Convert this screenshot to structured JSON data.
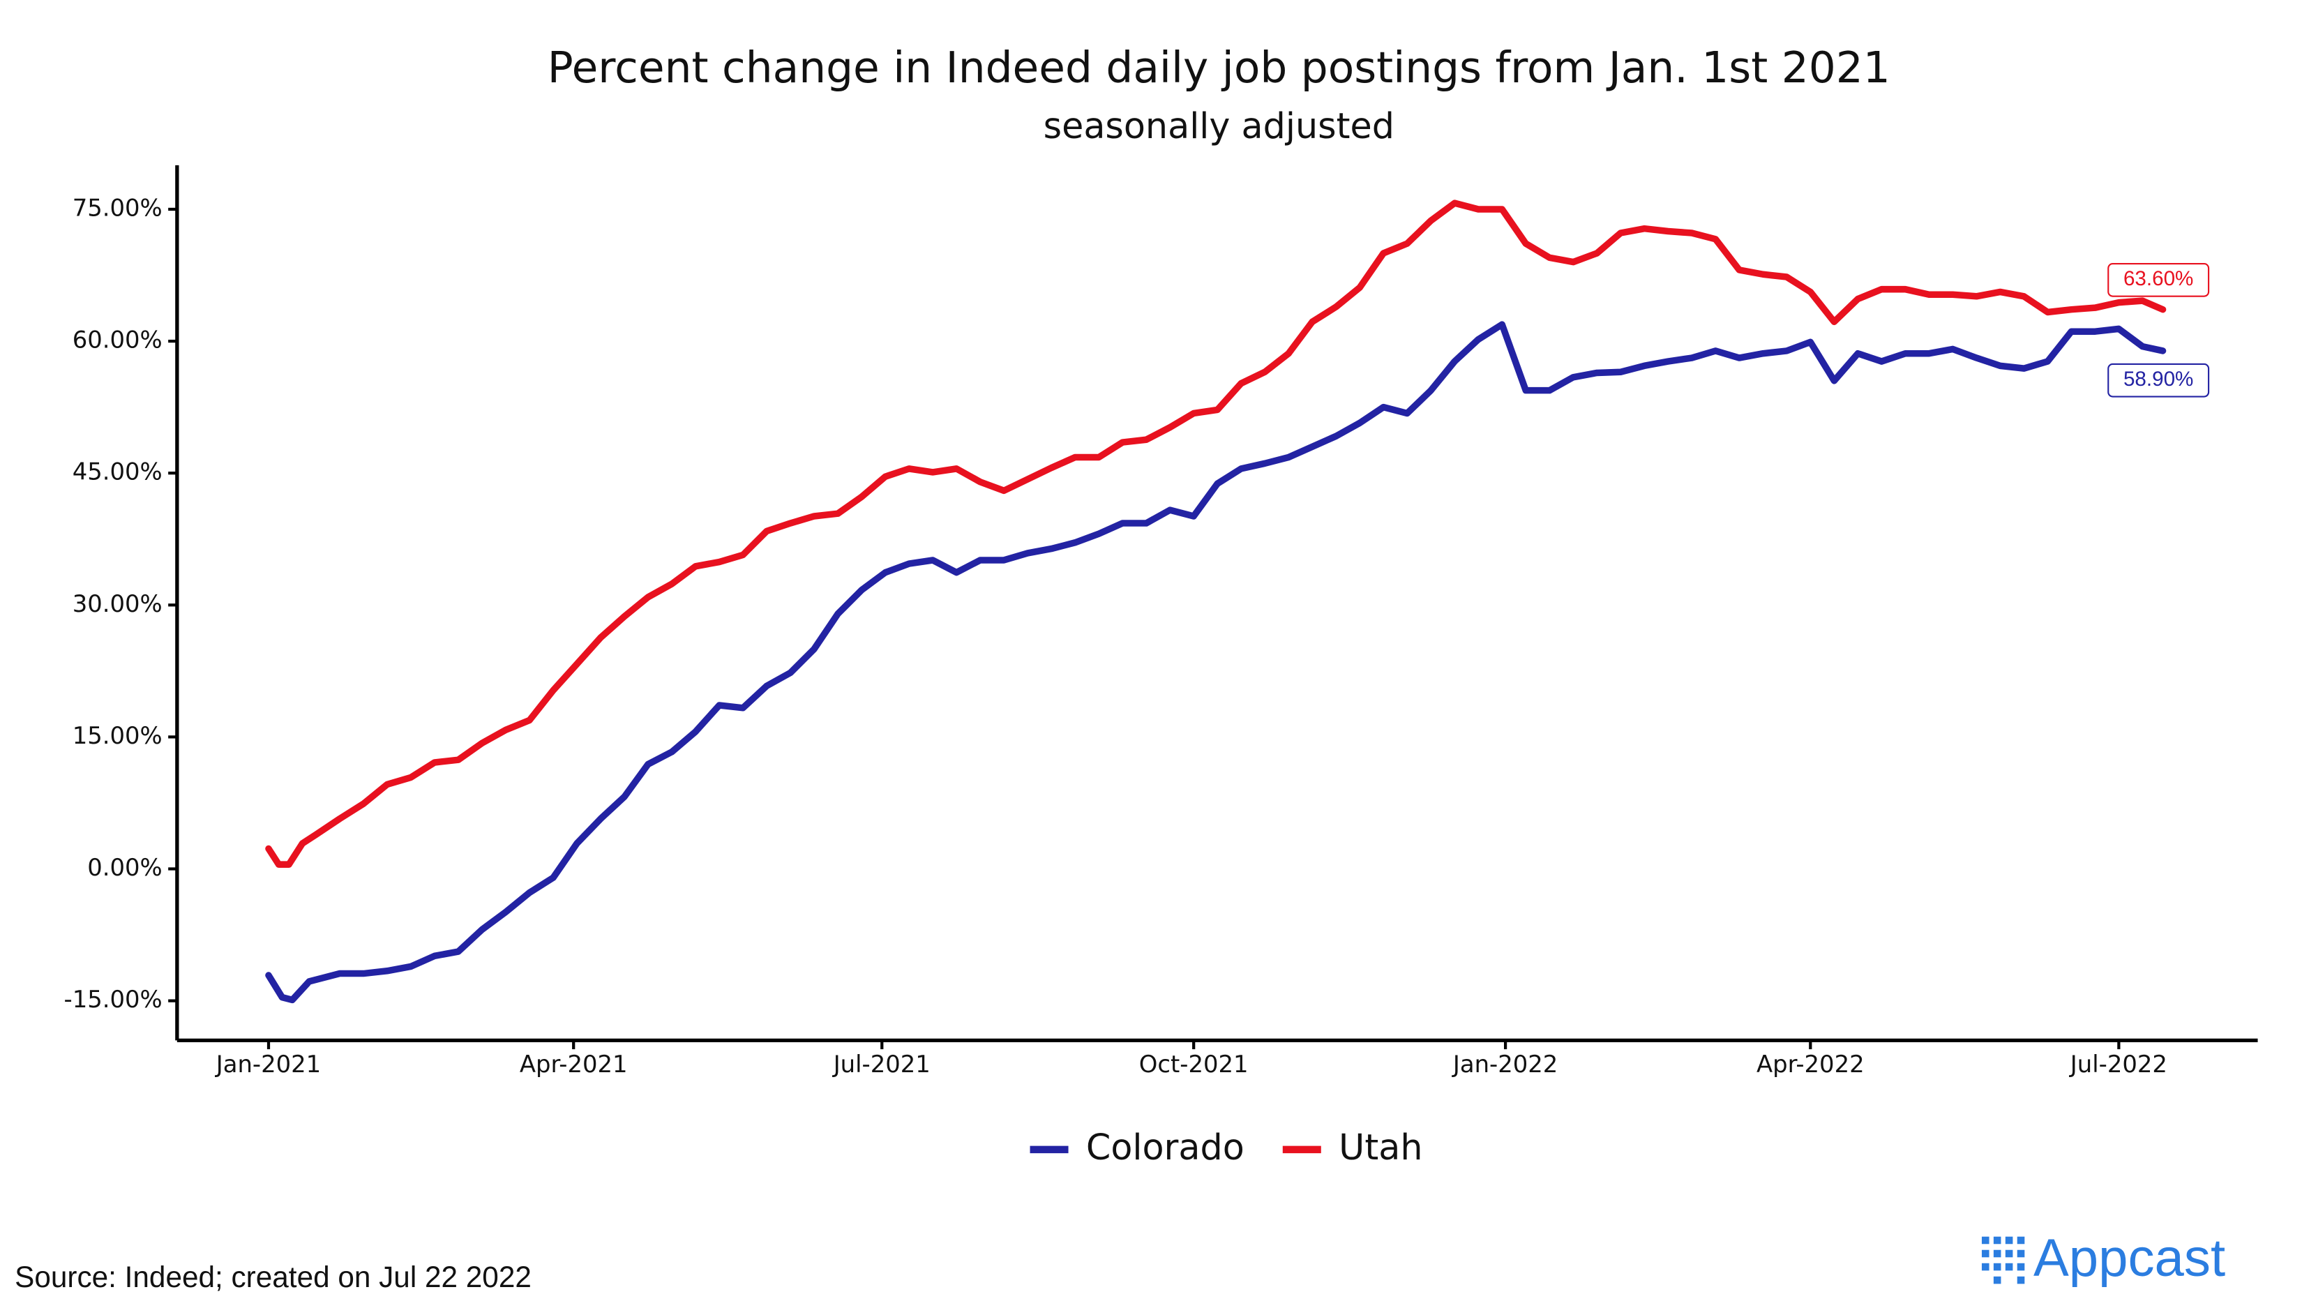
{
  "chart_data": {
    "type": "line",
    "title": "Percent change in Indeed daily job postings from Jan. 1st 2021",
    "subtitle": "seasonally adjusted",
    "source": "Source: Indeed; created on Jul 22 2022",
    "logo": "Appcast",
    "xlim": [
      -27,
      587
    ],
    "xticks": [
      {
        "value": 0,
        "label": "Jan-2021"
      },
      {
        "value": 90,
        "label": "Apr-2021"
      },
      {
        "value": 181,
        "label": "Jul-2021"
      },
      {
        "value": 273,
        "label": "Oct-2021"
      },
      {
        "value": 365,
        "label": "Jan-2022"
      },
      {
        "value": 455,
        "label": "Apr-2022"
      },
      {
        "value": 546,
        "label": "Jul-2022"
      }
    ],
    "ylim": [
      -19.5,
      80
    ],
    "yticks": [
      {
        "value": -15,
        "label": "-15.00%"
      },
      {
        "value": 0,
        "label": "0.00%"
      },
      {
        "value": 15,
        "label": "15.00%"
      },
      {
        "value": 30,
        "label": "30.00%"
      },
      {
        "value": 45,
        "label": "45.00%"
      },
      {
        "value": 60,
        "label": "60.00%"
      },
      {
        "value": 75,
        "label": "75.00%"
      }
    ],
    "legend": "bottom",
    "series": [
      {
        "name": "Colorado",
        "color": "#2323a3",
        "end_label": "58.90%",
        "x": [
          0,
          4,
          7,
          12,
          21,
          28,
          35,
          42,
          49,
          56,
          63,
          70,
          77,
          84,
          91,
          98,
          105,
          112,
          119,
          126,
          133,
          140,
          147,
          154,
          161,
          168,
          175,
          182,
          189,
          196,
          203,
          210,
          217,
          224,
          231,
          238,
          245,
          252,
          259,
          266,
          273,
          280,
          287,
          294,
          301,
          308,
          315,
          322,
          329,
          336,
          343,
          350,
          357,
          364,
          371,
          378,
          385,
          392,
          399,
          406,
          413,
          420,
          427,
          434,
          441,
          448,
          455,
          462,
          469,
          476,
          483,
          490,
          497,
          504,
          511,
          518,
          525,
          532,
          539,
          546,
          553,
          559
        ],
        "values": [
          -12.1,
          -14.6,
          -14.9,
          -12.8,
          -11.9,
          -11.9,
          -11.6,
          -11.1,
          -9.9,
          -9.4,
          -6.9,
          -4.9,
          -2.7,
          -1.0,
          2.9,
          5.7,
          8.2,
          11.9,
          13.3,
          15.6,
          18.6,
          18.3,
          20.8,
          22.3,
          25.0,
          29.0,
          31.7,
          33.7,
          34.7,
          35.1,
          33.7,
          35.1,
          35.1,
          35.9,
          36.4,
          37.1,
          38.1,
          39.3,
          39.3,
          40.8,
          40.1,
          43.8,
          45.5,
          46.1,
          46.8,
          48.0,
          49.2,
          50.7,
          52.5,
          51.8,
          54.4,
          57.7,
          60.2,
          61.9,
          54.4,
          54.4,
          55.9,
          56.4,
          56.5,
          57.2,
          57.7,
          58.1,
          58.9,
          58.1,
          58.6,
          58.9,
          59.9,
          55.5,
          58.6,
          57.7,
          58.6,
          58.6,
          59.1,
          58.1,
          57.2,
          56.9,
          57.7,
          61.1,
          61.1,
          61.4,
          59.4,
          58.9
        ]
      },
      {
        "name": "Utah",
        "color": "#e8111f",
        "end_label": "63.60%",
        "x": [
          0,
          3,
          6,
          10,
          14,
          21,
          28,
          35,
          42,
          49,
          56,
          63,
          70,
          77,
          84,
          91,
          98,
          105,
          112,
          119,
          126,
          133,
          140,
          147,
          154,
          161,
          168,
          175,
          182,
          189,
          196,
          203,
          210,
          217,
          224,
          231,
          238,
          245,
          252,
          259,
          266,
          273,
          280,
          287,
          294,
          301,
          308,
          315,
          322,
          329,
          336,
          343,
          350,
          357,
          364,
          371,
          378,
          385,
          392,
          399,
          406,
          413,
          420,
          427,
          434,
          441,
          448,
          455,
          462,
          469,
          476,
          483,
          490,
          497,
          504,
          511,
          518,
          525,
          532,
          539,
          546,
          553,
          559
        ],
        "values": [
          2.3,
          0.5,
          0.5,
          2.9,
          3.9,
          5.7,
          7.4,
          9.6,
          10.4,
          12.1,
          12.4,
          14.3,
          15.8,
          16.9,
          20.3,
          23.3,
          26.3,
          28.7,
          30.9,
          32.4,
          34.4,
          34.9,
          35.7,
          38.4,
          39.3,
          40.1,
          40.4,
          42.3,
          44.6,
          45.5,
          45.1,
          45.5,
          44.0,
          43.0,
          44.3,
          45.6,
          46.8,
          46.8,
          48.5,
          48.8,
          50.2,
          51.8,
          52.2,
          55.2,
          56.5,
          58.6,
          62.2,
          63.9,
          66.1,
          70.0,
          71.1,
          73.7,
          75.7,
          75.0,
          75.0,
          71.1,
          69.5,
          69.0,
          70.0,
          72.3,
          72.8,
          72.5,
          72.3,
          71.6,
          68.1,
          67.6,
          67.3,
          65.6,
          62.2,
          64.8,
          65.9,
          65.9,
          65.3,
          65.3,
          65.1,
          65.6,
          65.1,
          63.3,
          63.6,
          63.8,
          64.4,
          64.6,
          63.6
        ]
      }
    ]
  }
}
